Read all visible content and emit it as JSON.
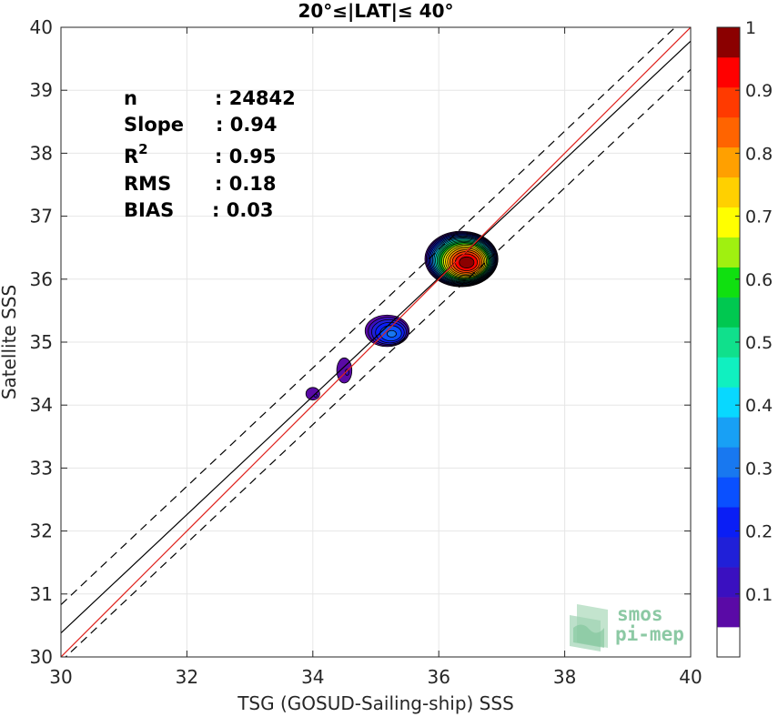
{
  "chart_data": {
    "type": "heatmap",
    "title": "20°≤|LAT|≤ 40°",
    "xlabel": "TSG (GOSUD-Sailing-ship) SSS",
    "ylabel": "Satellite SSS",
    "xlim": [
      30,
      40
    ],
    "ylim": [
      30,
      40
    ],
    "xticks": [
      30,
      32,
      34,
      36,
      38,
      40
    ],
    "yticks": [
      30,
      31,
      32,
      33,
      34,
      35,
      36,
      37,
      38,
      39,
      40
    ],
    "grid": true,
    "stats": [
      {
        "label": "n",
        "value": ": 24842"
      },
      {
        "label": "Slope",
        "value": ": 0.94"
      },
      {
        "label": "R",
        "sup": "2",
        "value": ": 0.95"
      },
      {
        "label": "RMS",
        "value": ": 0.18"
      },
      {
        "label": "BIAS",
        "value": ": 0.03"
      }
    ],
    "lines": {
      "one_to_one": {
        "color": "#e0201b",
        "points": [
          [
            30,
            30
          ],
          [
            40,
            40
          ]
        ]
      },
      "regression": {
        "color": "#000000",
        "points": [
          [
            30,
            30.38
          ],
          [
            40,
            39.78
          ]
        ]
      },
      "upper_bound": {
        "color": "#000000",
        "dash": true,
        "points": [
          [
            30,
            30.83
          ],
          [
            40,
            40.23
          ]
        ]
      },
      "lower_bound": {
        "color": "#000000",
        "dash": true,
        "points": [
          [
            30,
            29.93
          ],
          [
            40,
            39.33
          ]
        ]
      }
    },
    "density_blobs": [
      {
        "cx": 36.36,
        "cy": 36.32,
        "rx": 0.58,
        "ry": 0.44,
        "levels": [
          0.05,
          0.1,
          0.15,
          0.2,
          0.25,
          0.3,
          0.35,
          0.4,
          0.45,
          0.5,
          0.55,
          0.6,
          0.65,
          0.7,
          0.75,
          0.8,
          0.85,
          0.9,
          0.95,
          1.0
        ]
      },
      {
        "cx": 35.18,
        "cy": 35.18,
        "rx": 0.35,
        "ry": 0.25,
        "levels": [
          0.05,
          0.1,
          0.15,
          0.2,
          0.25,
          0.3
        ]
      },
      {
        "cx": 34.5,
        "cy": 34.55,
        "rx": 0.12,
        "ry": 0.2,
        "levels": [
          0.05,
          0.1
        ]
      },
      {
        "cx": 34.0,
        "cy": 34.18,
        "rx": 0.11,
        "ry": 0.1,
        "levels": [
          0.05,
          0.1
        ]
      }
    ],
    "colorbar": {
      "range": [
        0,
        1
      ],
      "tick_labels": [
        "0.1",
        "0.2",
        "0.3",
        "0.4",
        "0.5",
        "0.6",
        "0.7",
        "0.8",
        "0.9",
        "1"
      ],
      "tick_values": [
        0.1,
        0.2,
        0.3,
        0.4,
        0.5,
        0.6,
        0.7,
        0.8,
        0.9,
        1.0
      ],
      "colors": [
        "#ffffff",
        "#5a0aa6",
        "#3a10c0",
        "#2020d8",
        "#0a1ef5",
        "#0a50ff",
        "#1878f0",
        "#18a0f5",
        "#08d8ff",
        "#10f0c0",
        "#10e08c",
        "#00c850",
        "#10e010",
        "#a0f010",
        "#ffff00",
        "#ffd000",
        "#ffa000",
        "#ff6400",
        "#ff3a00",
        "#ff0000",
        "#8b0000"
      ]
    }
  },
  "logo": {
    "line1": "smos",
    "line2": "pi-mep"
  }
}
